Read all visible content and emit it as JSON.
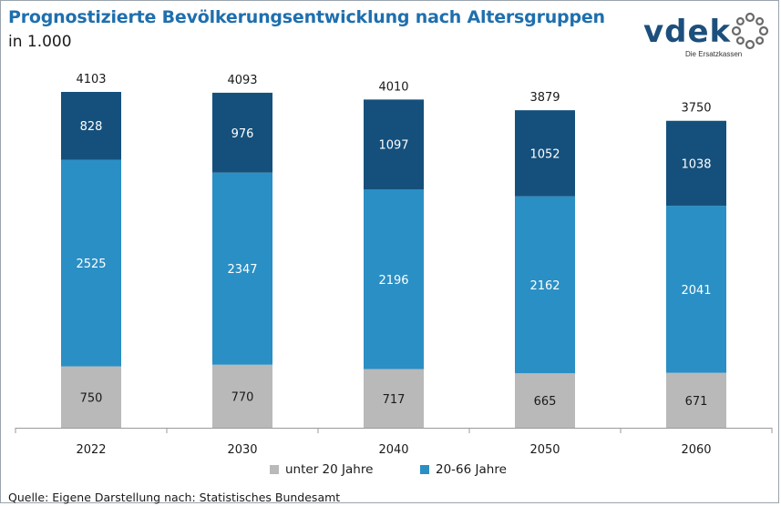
{
  "chart_data": {
    "type": "bar",
    "stacked": true,
    "title": "Prognostizierte Bevölkerungsentwicklung nach Altersgruppen",
    "subtitle": "in 1.000",
    "categories": [
      "2022",
      "2030",
      "2040",
      "2050",
      "2060"
    ],
    "series": [
      {
        "name": "unter 20 Jahre",
        "color": "#b9b9b9",
        "label_color": "#1a1a1a",
        "values": [
          750,
          770,
          717,
          665,
          671
        ]
      },
      {
        "name": "20-66 Jahre",
        "color": "#2a8fc4",
        "label_color": "#ffffff",
        "values": [
          2525,
          2347,
          2196,
          2162,
          2041
        ]
      },
      {
        "name": "",
        "color": "#15507c",
        "label_color": "#ffffff",
        "values": [
          828,
          976,
          1097,
          1052,
          1038
        ]
      }
    ],
    "totals": [
      4103,
      4093,
      4010,
      3879,
      3750
    ],
    "legend_entries": [
      "unter 20 Jahre",
      "20-66 Jahre"
    ],
    "xlabel": "",
    "ylabel": "",
    "grid": false
  },
  "header": {
    "title": "Prognostizierte Bevölkerungsentwicklung nach Altersgruppen",
    "subtitle": "in 1.000"
  },
  "logo": {
    "wordmark": "vdek",
    "tagline": "Die Ersatzkassen",
    "color": "#1d4f7c"
  },
  "footer": {
    "source": "Quelle: Eigene Darstellung nach: Statistisches Bundesamt"
  }
}
